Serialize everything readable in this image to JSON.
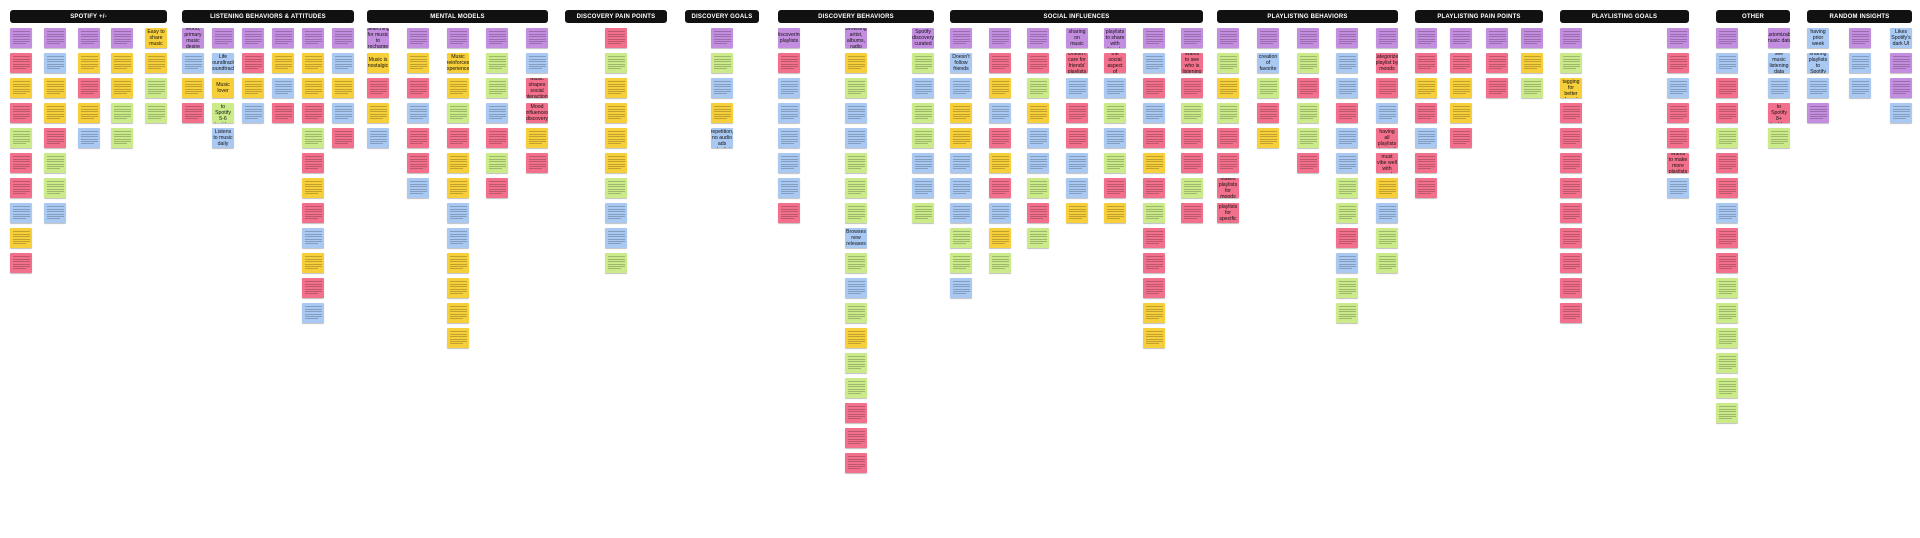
{
  "colors": {
    "purple": "#c48ee0",
    "blue": "#a9c8f2",
    "yellow": "#f6cf3a",
    "pink": "#f2708c",
    "green": "#cbeb8a",
    "header_bg": "#111111",
    "header_text": "#ffffff"
  },
  "columns": [
    {
      "header": "SPOTIFY +/-",
      "subcols": [
        [
          "purple",
          "pink",
          "yellow",
          "pink",
          "green",
          "pink",
          "pink",
          "blue",
          "yellow",
          "pink"
        ],
        [
          "purple",
          "blue",
          "yellow",
          "yellow",
          "pink",
          "green",
          "green",
          "blue"
        ],
        [
          "purple",
          "yellow",
          "pink",
          "yellow",
          "blue"
        ],
        [
          "purple",
          "yellow",
          "yellow",
          "green",
          "green"
        ],
        [
          {
            "c": "yellow",
            "t": "Easy to share music"
          },
          "yellow",
          "green",
          "green"
        ]
      ]
    },
    {
      "header": "LISTENING BEHAVIORS & ATTITUDES",
      "subcols": [
        [
          {
            "c": "purple",
            "t": "Mood, primary music desire"
          },
          "blue",
          "yellow",
          "pink"
        ],
        [
          "purple",
          {
            "c": "blue",
            "t": "Life soundtrack, soundtrack"
          },
          {
            "c": "yellow",
            "t": "Music lover"
          },
          {
            "c": "green",
            "t": "Listens to Spotify 5-6 hrs/day"
          },
          {
            "c": "blue",
            "t": "Listens to music daily"
          }
        ],
        [
          "purple",
          "pink",
          "yellow",
          "blue"
        ],
        [
          "purple",
          "yellow",
          "blue",
          "pink"
        ],
        [
          "purple",
          "yellow",
          "yellow",
          "pink",
          "green",
          "pink",
          "yellow",
          "pink",
          "blue",
          "yellow",
          "pink",
          "blue"
        ],
        [
          "purple",
          "blue",
          "yellow",
          "blue",
          "pink"
        ]
      ]
    },
    {
      "header": "MENTAL MODELS",
      "subcols": [
        [
          {
            "c": "purple",
            "t": "Searching for music to recharge"
          },
          {
            "c": "yellow",
            "t": "Music is nostalgic"
          },
          "pink",
          "yellow",
          "blue"
        ],
        [
          "purple",
          "yellow",
          "pink",
          "blue",
          "pink",
          "pink",
          "blue"
        ],
        [
          "purple",
          {
            "c": "yellow",
            "t": "Music reinforces experiences"
          },
          "yellow",
          "green",
          "pink",
          "yellow",
          "yellow",
          "blue",
          "blue",
          "yellow",
          "yellow",
          "yellow",
          "yellow"
        ],
        [
          "purple",
          "green",
          "green",
          "blue",
          "pink",
          "green",
          "pink"
        ],
        [
          "purple",
          "blue",
          {
            "c": "pink",
            "t": "Music shapes social interactions"
          },
          {
            "c": "pink",
            "t": "Mood influences discovery"
          },
          "yellow",
          "pink"
        ]
      ]
    },
    {
      "header": "DISCOVERY PAIN POINTS",
      "subcols": [
        [
          "pink",
          "green",
          "yellow",
          "yellow",
          "yellow",
          "yellow",
          "green",
          "blue",
          "blue",
          "green"
        ]
      ]
    },
    {
      "header": "DISCOVERY GOALS",
      "subcols": [
        [
          "purple",
          "green",
          "blue",
          "yellow",
          {
            "c": "blue",
            "t": "Reduce repetition, no audio ads playlist"
          }
        ]
      ]
    },
    {
      "header": "DISCOVERY BEHAVIORS",
      "subcols": [
        [
          {
            "c": "purple",
            "t": "Discovering playlists"
          },
          "pink",
          "blue",
          "blue",
          "blue",
          "blue",
          "blue",
          "pink"
        ],
        [
          {
            "c": "purple",
            "t": "Browsing artist, albums, radio"
          },
          "yellow",
          "green",
          "blue",
          "blue",
          "green",
          "green",
          "green",
          {
            "c": "blue",
            "t": "Browses new releases"
          },
          "green",
          "blue",
          "green",
          "yellow",
          "green",
          "green",
          "pink",
          "pink",
          "pink"
        ],
        [
          {
            "c": "purple",
            "t": "Spotify discovery curated"
          },
          "green",
          "blue",
          "green",
          "green",
          "blue",
          "blue",
          "green"
        ]
      ]
    },
    {
      "header": "SOCIAL INFLUENCES",
      "subcols": [
        [
          "purple",
          {
            "c": "blue",
            "t": "Doesn't follow friends"
          },
          "blue",
          "yellow",
          "yellow",
          "blue",
          "blue",
          "blue",
          "green",
          "green",
          "blue"
        ],
        [
          "purple",
          "pink",
          "yellow",
          "blue",
          "pink",
          "yellow",
          "pink",
          "blue",
          "yellow",
          "green"
        ],
        [
          "purple",
          "pink",
          "green",
          "yellow",
          "blue",
          "blue",
          "green",
          "pink",
          "green"
        ],
        [
          {
            "c": "purple",
            "t": "Social sharing on music pages"
          },
          {
            "c": "pink",
            "t": "Doesn't care for friends' playlists"
          },
          "blue",
          "pink",
          "pink",
          "blue",
          "blue",
          "yellow"
        ],
        [
          {
            "c": "purple",
            "t": "Curates playlists to share with friends"
          },
          {
            "c": "pink",
            "t": "Dislikes the social aspect of Spotify"
          },
          "blue",
          "green",
          "blue",
          "green",
          "pink",
          "yellow"
        ],
        [
          "purple",
          "blue",
          "pink",
          "blue",
          "pink",
          "yellow",
          "pink",
          "green",
          "pink",
          "pink",
          "pink",
          "yellow",
          "yellow"
        ],
        [
          "purple",
          {
            "c": "pink",
            "t": "Wants to see who is listening"
          },
          "pink",
          "green",
          "pink",
          "pink",
          "green",
          "pink"
        ]
      ]
    },
    {
      "header": "PLAYLISTING BEHAVIORS",
      "subcols": [
        [
          "purple",
          "green",
          "yellow",
          "green",
          "pink",
          "pink",
          {
            "c": "pink",
            "t": "Makes playlists for moods"
          },
          {
            "c": "pink",
            "t": "Creates playlists for specific occasions"
          }
        ],
        [
          "purple",
          {
            "c": "blue",
            "t": "Deciding creation of favorite songs"
          },
          "green",
          "pink",
          "yellow"
        ],
        [
          "purple",
          "green",
          "pink",
          "green",
          "green",
          "pink"
        ],
        [
          "purple",
          "blue",
          "blue",
          "pink",
          "blue",
          "blue",
          "green",
          "green",
          "pink",
          "blue",
          "green",
          "green"
        ],
        [
          "purple",
          {
            "c": "pink",
            "t": "Categorizes playlist by moods"
          },
          "pink",
          "blue",
          {
            "c": "pink",
            "t": "Likes having all playlists in mind"
          },
          {
            "c": "pink",
            "t": "Playlists must vibe well with moods"
          },
          "yellow",
          "blue",
          "green",
          "green"
        ]
      ]
    },
    {
      "header": "PLAYLISTING PAIN POINTS",
      "subcols": [
        [
          "purple",
          "pink",
          "yellow",
          "pink",
          "blue",
          "pink",
          "pink"
        ],
        [
          "purple",
          "pink",
          "yellow",
          "yellow",
          "pink"
        ],
        [
          "purple",
          "pink",
          "pink"
        ],
        [
          "purple",
          "yellow",
          "green"
        ]
      ]
    },
    {
      "header": "PLAYLISTING GOALS",
      "subcols": [
        [
          "purple",
          "green",
          {
            "c": "yellow",
            "t": "Spotify song tagging for better found playlists"
          },
          "pink",
          "pink",
          "pink",
          "pink",
          "pink",
          "pink",
          "pink",
          "pink",
          "pink"
        ],
        [
          "purple",
          "pink",
          "blue",
          "pink",
          "pink",
          {
            "c": "pink",
            "t": "Wants to make more playlists"
          },
          "blue"
        ]
      ]
    },
    {
      "header": "OTHER",
      "subcols": [
        [
          "purple",
          "blue",
          "pink",
          "pink",
          "green",
          "pink",
          "pink",
          "blue",
          "pink",
          "pink",
          "green",
          "green",
          "green",
          "green",
          "green",
          "green"
        ],
        [
          {
            "c": "purple",
            "t": "Customizable music data"
          },
          {
            "c": "blue",
            "t": "Fun to see music listening data trends"
          },
          "blue",
          {
            "c": "pink",
            "t": "Listens to Spotify 8+ hrs/day"
          },
          "green"
        ]
      ]
    },
    {
      "header": "RANDOM INSIGHTS",
      "subcols": [
        [
          {
            "c": "blue",
            "t": "Likes having prior week song"
          },
          {
            "c": "blue",
            "t": "Likes sharing playlists to Spotify songs"
          },
          "blue",
          "purple"
        ],
        [
          "purple",
          "blue",
          "blue"
        ],
        [
          {
            "c": "blue",
            "t": "Likes Spotify's dark UI"
          },
          "purple",
          "purple",
          "blue"
        ]
      ]
    }
  ]
}
